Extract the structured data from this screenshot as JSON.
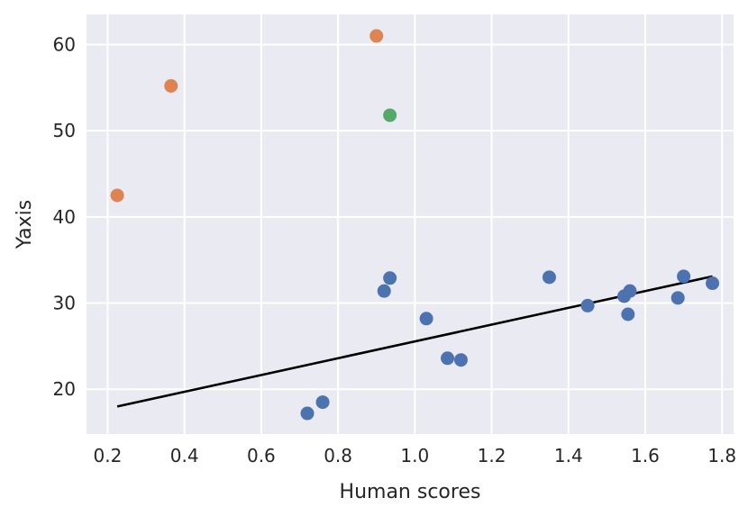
{
  "chart_data": {
    "type": "scatter",
    "title": "",
    "xlabel": "Human scores",
    "ylabel": "Yaxis",
    "xlim": [
      0.145,
      1.83
    ],
    "ylim": [
      14.8,
      63.5
    ],
    "x_ticks": [
      0.2,
      0.4,
      0.6,
      0.8,
      1.0,
      1.2,
      1.4,
      1.6,
      1.8
    ],
    "x_tick_labels": [
      "0.2",
      "0.4",
      "0.6",
      "0.8",
      "1.0",
      "1.2",
      "1.4",
      "1.6",
      "1.8"
    ],
    "y_ticks": [
      20,
      30,
      40,
      50,
      60
    ],
    "y_tick_labels": [
      "20",
      "30",
      "40",
      "50",
      "60"
    ],
    "grid": true,
    "legend": false,
    "background_color": "#eaeaf2",
    "grid_color": "#ffffff",
    "series": [
      {
        "color": "#4c72b0",
        "points": [
          {
            "x": 0.72,
            "y": 17.2
          },
          {
            "x": 0.76,
            "y": 18.5
          },
          {
            "x": 0.92,
            "y": 31.4
          },
          {
            "x": 0.935,
            "y": 32.9
          },
          {
            "x": 1.03,
            "y": 28.2
          },
          {
            "x": 1.085,
            "y": 23.6
          },
          {
            "x": 1.12,
            "y": 23.4
          },
          {
            "x": 1.35,
            "y": 33.0
          },
          {
            "x": 1.45,
            "y": 29.7
          },
          {
            "x": 1.545,
            "y": 30.8
          },
          {
            "x": 1.56,
            "y": 31.4
          },
          {
            "x": 1.555,
            "y": 28.7
          },
          {
            "x": 1.685,
            "y": 30.6
          },
          {
            "x": 1.7,
            "y": 33.1
          },
          {
            "x": 1.775,
            "y": 32.3
          }
        ]
      },
      {
        "color": "#dd8452",
        "points": [
          {
            "x": 0.225,
            "y": 42.5
          },
          {
            "x": 0.365,
            "y": 55.2
          },
          {
            "x": 0.9,
            "y": 61.0
          }
        ]
      },
      {
        "color": "#55a868",
        "points": [
          {
            "x": 0.935,
            "y": 51.8
          }
        ]
      }
    ],
    "trend_line": {
      "color": "#000000",
      "x": [
        0.225,
        1.775
      ],
      "y": [
        18.0,
        33.1
      ]
    }
  }
}
